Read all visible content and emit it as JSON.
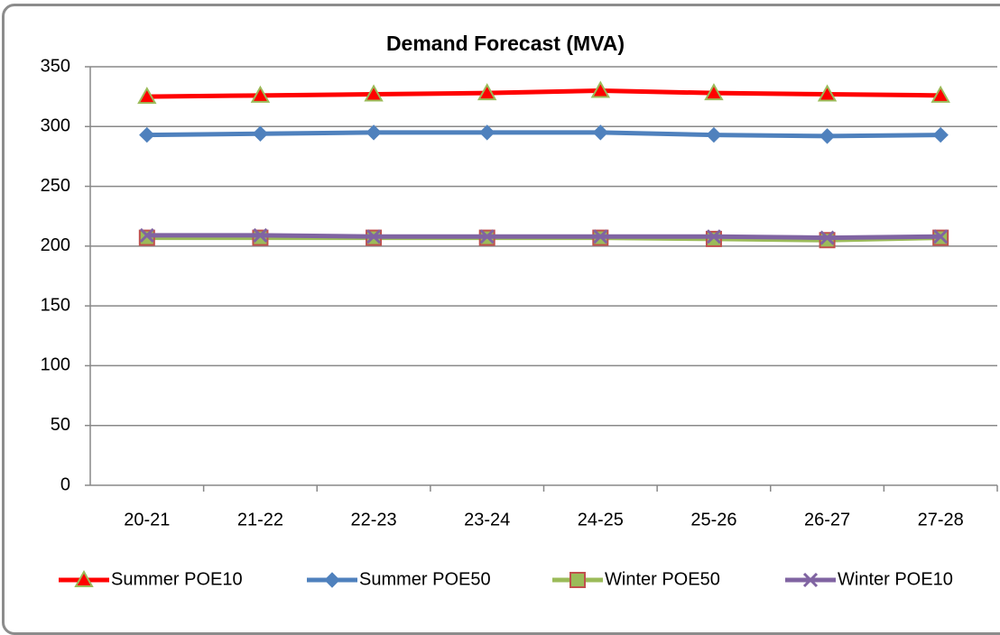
{
  "chart_data": {
    "type": "line",
    "title": "Demand Forecast (MVA)",
    "categories": [
      "20-21",
      "21-22",
      "22-23",
      "23-24",
      "24-25",
      "25-26",
      "26-27",
      "27-28"
    ],
    "series": [
      {
        "name": "Summer POE10",
        "color": "#ff0000",
        "marker": "triangle",
        "values": [
          325,
          326,
          327,
          328,
          330,
          328,
          327,
          326
        ]
      },
      {
        "name": "Summer POE50",
        "color": "#4f81bd",
        "marker": "diamond",
        "values": [
          293,
          294,
          295,
          295,
          295,
          293,
          292,
          293
        ]
      },
      {
        "name": "Winter POE50",
        "color": "#9bbb59",
        "marker": "square",
        "values": [
          207,
          207,
          207,
          207,
          207,
          206,
          205,
          207
        ]
      },
      {
        "name": "Winter POE10",
        "color": "#8064a2",
        "marker": "x",
        "values": [
          209,
          209,
          208,
          208,
          208,
          208,
          207,
          208
        ]
      }
    ],
    "ylim": [
      0,
      350
    ],
    "yticks": [
      0,
      50,
      100,
      150,
      200,
      250,
      300,
      350
    ],
    "grid": true,
    "legend": "bottom"
  }
}
